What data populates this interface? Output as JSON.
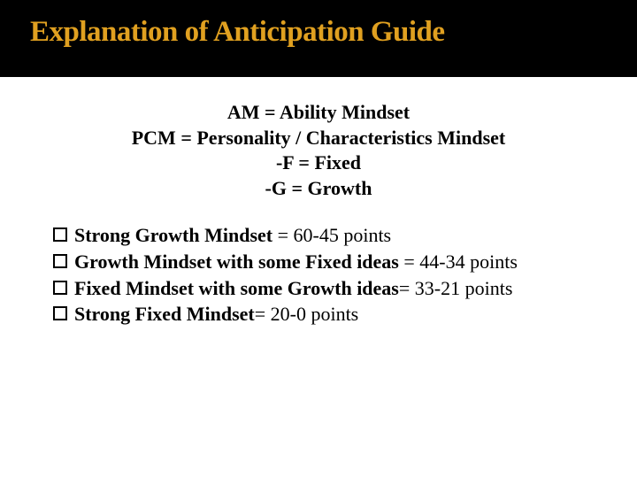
{
  "title": "Explanation of Anticipation Guide",
  "title_color": "#e0a020",
  "title_bg": "#000000",
  "definitions": [
    "AM = Ability Mindset",
    "PCM = Personality / Characteristics Mindset",
    "-F = Fixed",
    "-G = Growth"
  ],
  "bullets": [
    {
      "bold": "Strong Growth Mindset",
      "rest": " = 60-45 points"
    },
    {
      "bold": "Growth Mindset with some Fixed ideas",
      "rest": " = 44-34 points"
    },
    {
      "bold": "Fixed Mindset with some Growth ideas",
      "rest": "= 33-21 points"
    },
    {
      "bold": "Strong Fixed Mindset",
      "rest": "= 20-0 points"
    }
  ],
  "styling": {
    "body_fontsize": 22,
    "title_fontsize": 33,
    "bullet_marker_size": 16,
    "bullet_marker_border": 2.2,
    "background_color": "#ffffff",
    "text_color": "#000000",
    "line_height": 1.35
  }
}
